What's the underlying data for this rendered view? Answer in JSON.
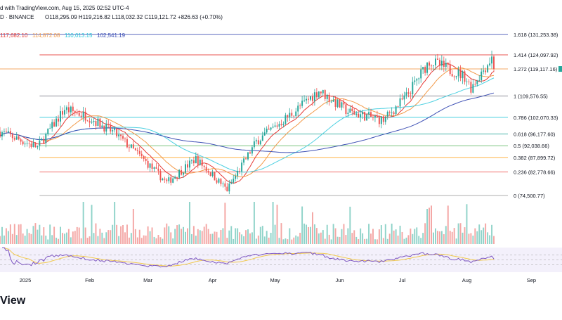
{
  "header": {
    "published": "d with TradingView.com, Aug 15, 2025 02:52 UTC-4",
    "exchange": "D · BINANCE",
    "ohlc": "O118,295.09  H119,216.82  L118,032.32  C119,121.72  +826.63 (+0.70%)"
  },
  "ma_values": {
    "ma1": "117,682.10",
    "ma2": "114,872.08",
    "ma3": "110,013.15",
    "ma4": "102,541.19"
  },
  "colors": {
    "ma1": "#e53935",
    "ma2": "#f29a4a",
    "ma3": "#4dd0e1",
    "ma4": "#3f51b5",
    "up_candle": "#26a69a",
    "down_candle": "#ef5350",
    "rsi": "#7e57c2"
  },
  "footer": {
    "brand": "View"
  },
  "chart_data": {
    "type": "candlestick",
    "title": "",
    "x_ticks": [
      {
        "label": "2025",
        "date": "2025-01-01"
      },
      {
        "label": "Feb",
        "date": "2025-02-01"
      },
      {
        "label": "Mar",
        "date": "2025-03-01"
      },
      {
        "label": "Apr",
        "date": "2025-04-01"
      },
      {
        "label": "May",
        "date": "2025-05-01"
      },
      {
        "label": "Jun",
        "date": "2025-06-01"
      },
      {
        "label": "Jul",
        "date": "2025-07-01"
      },
      {
        "label": "Aug",
        "date": "2025-08-01"
      },
      {
        "label": "Sep",
        "date": "2025-09-01"
      }
    ],
    "x_range": [
      "2024-12-20",
      "2025-09-13"
    ],
    "y_range": [
      71000,
      136000
    ],
    "fib_levels": [
      {
        "label": "1.618 (131,253.38)",
        "value": 131253.38,
        "color": "#3f51b5",
        "start": "2024-12-20"
      },
      {
        "label": "1.414 (124,097.92)",
        "value": 124097.92,
        "color": "#e53935",
        "start": "2025-01-08"
      },
      {
        "label": "1.272 (119,117.16)",
        "value": 119117.16,
        "color": "#f29a4a",
        "start": "2024-12-20"
      },
      {
        "label": "1 (109,576.55)",
        "value": 109576.55,
        "color": "#787b86",
        "start": "2025-01-08"
      },
      {
        "label": "0.786 (102,070.33)",
        "value": 102070.33,
        "color": "#26c6da",
        "start": "2025-01-08"
      },
      {
        "label": "0.618 (96,177.60)",
        "value": 96177.6,
        "color": "#26a69a",
        "start": "2025-01-08"
      },
      {
        "label": "0.5 (92,038.66)",
        "value": 92038.66,
        "color": "#66bb6a",
        "start": "2025-01-08"
      },
      {
        "label": "0.382 (87,899.72)",
        "value": 87899.72,
        "color": "#ffa726",
        "start": "2025-01-08"
      },
      {
        "label": "0.236 (82,778.66)",
        "value": 82778.66,
        "color": "#ef5350",
        "start": "2025-01-08"
      },
      {
        "label": "0 (74,500.77)",
        "value": 74500.77,
        "color": "#9e9e9e",
        "start": "2025-01-08"
      }
    ],
    "last_price": 119121.72,
    "anchors": [
      {
        "date": "2024-12-20",
        "close": 97000
      },
      {
        "date": "2025-01-07",
        "close": 91500
      },
      {
        "date": "2025-01-20",
        "close": 105000
      },
      {
        "date": "2025-01-31",
        "close": 102400
      },
      {
        "date": "2025-02-13",
        "close": 96500
      },
      {
        "date": "2025-02-25",
        "close": 88500
      },
      {
        "date": "2025-03-10",
        "close": 79000
      },
      {
        "date": "2025-03-24",
        "close": 87500
      },
      {
        "date": "2025-04-08",
        "close": 76500
      },
      {
        "date": "2025-04-22",
        "close": 93500
      },
      {
        "date": "2025-05-10",
        "close": 104000
      },
      {
        "date": "2025-05-22",
        "close": 111500
      },
      {
        "date": "2025-06-05",
        "close": 104000
      },
      {
        "date": "2025-06-22",
        "close": 101000
      },
      {
        "date": "2025-07-03",
        "close": 109500
      },
      {
        "date": "2025-07-14",
        "close": 122000
      },
      {
        "date": "2025-07-31",
        "close": 116500
      },
      {
        "date": "2025-08-03",
        "close": 112600
      },
      {
        "date": "2025-08-13",
        "close": 123000
      },
      {
        "date": "2025-08-14",
        "close": 119121.72
      }
    ],
    "ma_periods": [
      10,
      20,
      50,
      100
    ],
    "rsi_period": 14,
    "rsi_reference_levels": [
      30,
      50,
      70
    ]
  }
}
